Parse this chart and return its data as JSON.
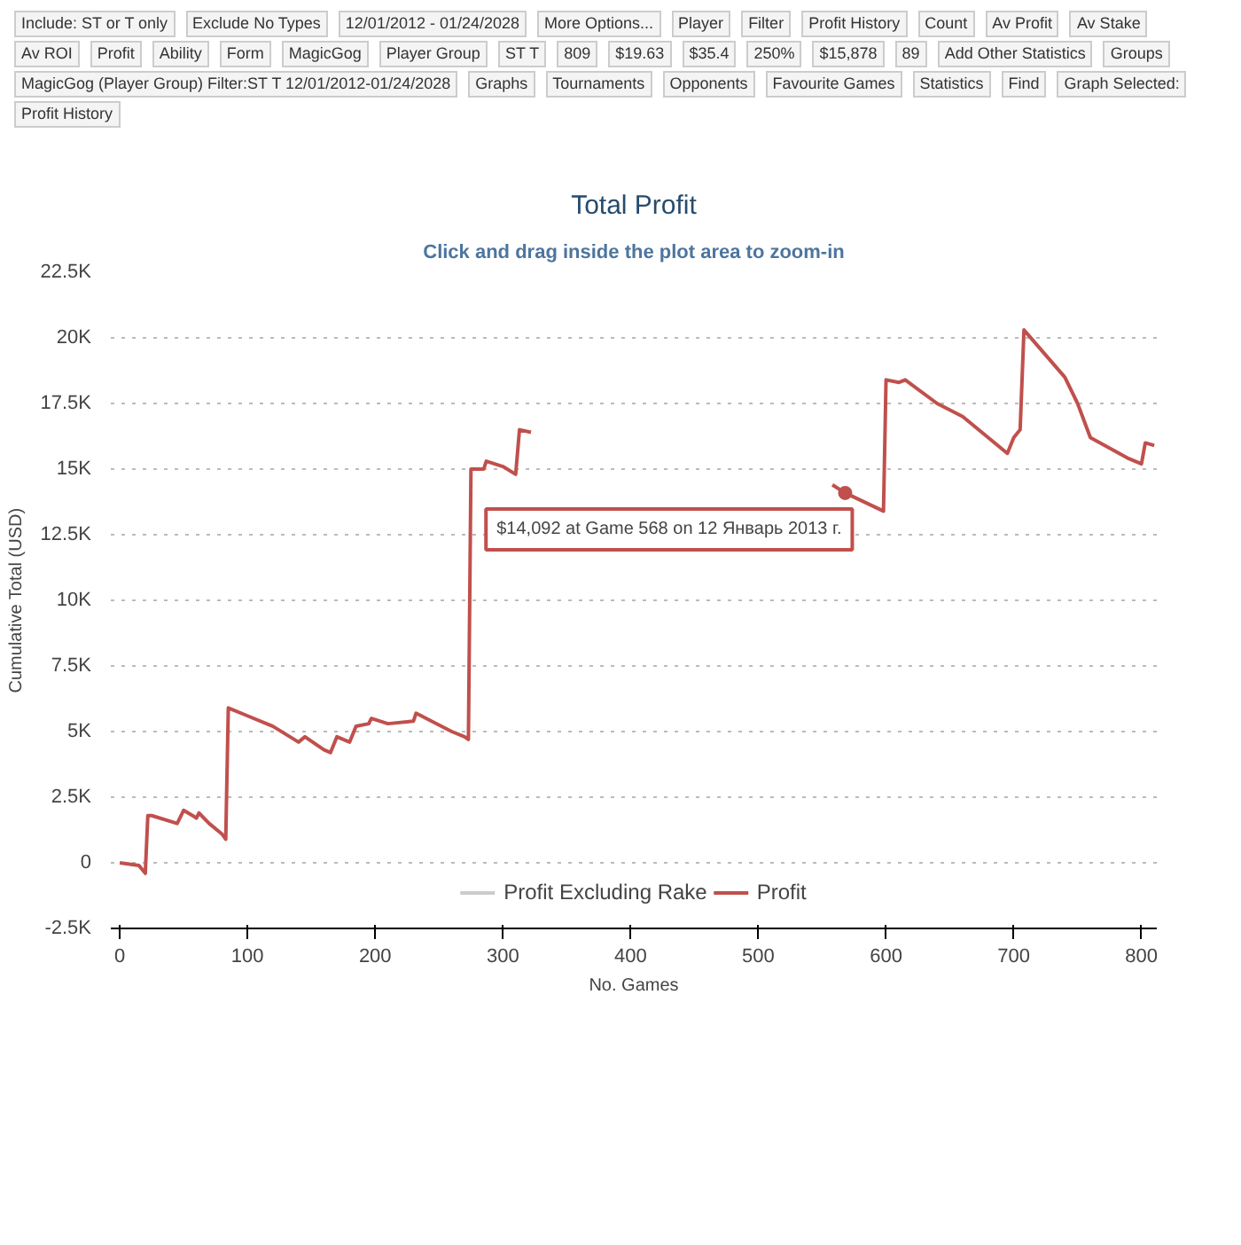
{
  "chart_data": {
    "type": "line",
    "title": "Total Profit",
    "subtitle": "Click and drag inside the plot area to zoom-in",
    "xlabel": "No. Games",
    "ylabel": "Cumulative Total (USD)",
    "annotations": [
      "Include: ST or T only",
      "Exclude No Types",
      "12/01/2012 - 01/24/2028",
      "More Options...",
      "Player",
      "Filter",
      "Profit History",
      "Count",
      "Av Profit",
      "Av Stake",
      "Av ROI",
      "Profit",
      "Ability",
      "Form",
      "MagicGog",
      "Player Group",
      "ST T",
      "809",
      "$19.63",
      "$35.4",
      "250%",
      "$15,878",
      "89",
      "Add Other Statistics",
      "Groups",
      "MagicGog (Player Group) Filter:ST T 12/01/2012-01/24/2028",
      "Graphs",
      "Tournaments",
      "Opponents",
      "Favourite Games",
      "Statistics",
      "Find",
      "Graph Selected:",
      "Profit History",
      {
        "text": "$14,092 at Game 568 on 12 Январь 2013 г.",
        "x": 568,
        "y": 14092
      }
    ],
    "x": [
      0,
      15,
      20,
      22,
      25,
      45,
      50,
      57,
      60,
      62,
      70,
      80,
      83,
      85,
      100,
      120,
      140,
      145,
      160,
      165,
      170,
      180,
      185,
      195,
      197,
      210,
      230,
      232,
      260,
      270,
      273,
      275,
      285,
      287,
      300,
      310,
      313,
      322,
      330,
      550,
      558,
      568,
      598,
      600,
      610,
      615,
      640,
      660,
      695,
      700,
      705,
      708,
      740,
      750,
      760,
      790,
      800,
      803,
      810
    ],
    "series": [
      {
        "name": "Profit Excluding Rake",
        "color": "#cccccc",
        "values": [
          null,
          null,
          null,
          null,
          null,
          null,
          null,
          null,
          null,
          null,
          null,
          null,
          null,
          null,
          null,
          null,
          null,
          null,
          null,
          null,
          null,
          null,
          null,
          null,
          null,
          null,
          null,
          null,
          null,
          null,
          null,
          null,
          null,
          null,
          null,
          null,
          null,
          null,
          null,
          null,
          null,
          null,
          null,
          null,
          null,
          null,
          null,
          null,
          null,
          null,
          null,
          null,
          null,
          null,
          null,
          null,
          null,
          null,
          null
        ]
      },
      {
        "name": "Profit",
        "color": "#c0504d",
        "values": [
          0,
          -100,
          -400,
          1800,
          1800,
          1500,
          2000,
          1800,
          1700,
          1900,
          1500,
          1100,
          900,
          5900,
          5600,
          5200,
          4600,
          4800,
          4300,
          4200,
          4800,
          4600,
          5200,
          5300,
          5500,
          5300,
          5400,
          5700,
          5000,
          4800,
          4700,
          15000,
          15000,
          15300,
          15100,
          14800,
          16500,
          16400,
          null,
          null,
          14400,
          14092,
          13400,
          18400,
          18300,
          18400,
          17500,
          17000,
          15600,
          16200,
          16500,
          20300,
          18500,
          17500,
          16200,
          15400,
          15200,
          16000,
          15900
        ]
      }
    ],
    "xlim": [
      -7,
      812
    ],
    "xticks": [
      0,
      100,
      200,
      300,
      400,
      500,
      600,
      700,
      800
    ],
    "ylim": [
      -2500,
      22500
    ],
    "yticks": [
      {
        "value": -2500,
        "label": "-2.5K"
      },
      0,
      {
        "value": 2500,
        "label": "2.5K"
      },
      {
        "value": 5000,
        "label": "5K"
      },
      {
        "value": 7500,
        "label": "7.5K"
      },
      {
        "value": 10000,
        "label": "10K"
      },
      {
        "value": 12500,
        "label": "12.5K"
      },
      {
        "value": 15000,
        "label": "15K"
      },
      {
        "value": 17500,
        "label": "17.5K"
      },
      {
        "value": 20000,
        "label": "20K"
      },
      {
        "value": 22500,
        "label": "22.5K"
      }
    ],
    "grid": "y",
    "legend": "bottom",
    "marker": "none",
    "line_style": "solid"
  }
}
